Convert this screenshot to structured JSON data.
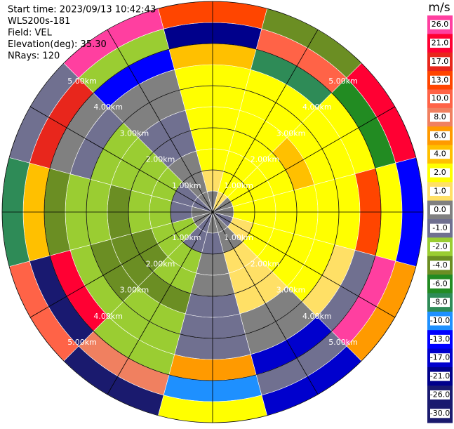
{
  "chart_data": {
    "type": "radar",
    "info": [
      "Start time: 2023/09/13 10:42:43",
      "WLS200s-181",
      "Field: VEL",
      "Elevation(deg): 35.30",
      "NRays: 120"
    ],
    "unit": "m/s",
    "rlim": [
      0,
      5
    ],
    "rticks": [
      {
        "value": 1,
        "label": "1.00km"
      },
      {
        "value": 2,
        "label": "2.00km"
      },
      {
        "value": 3,
        "label": "3.00km"
      },
      {
        "value": 4,
        "label": "4.00km"
      },
      {
        "value": 5,
        "label": "5.00km"
      }
    ],
    "values": [
      [
        0,
        1,
        0,
        0,
        -1,
        0,
        0,
        -1,
        0,
        0,
        -1,
        0
      ],
      [
        1,
        2,
        2,
        2,
        1,
        0,
        -1,
        -1,
        -2,
        -1,
        -1,
        0
      ],
      [
        2,
        2,
        3,
        2,
        2,
        1,
        0,
        -2,
        -2,
        -2,
        -2,
        0
      ],
      [
        2,
        3,
        3,
        3,
        2,
        1,
        0,
        -2,
        -3,
        -2,
        -2,
        -1
      ],
      [
        3,
        3,
        4,
        3,
        2,
        1,
        -1,
        -3,
        -3,
        -3,
        -2,
        -1
      ],
      [
        3,
        3,
        3,
        3,
        2,
        0,
        -1,
        -2,
        -3,
        -2,
        -2,
        0
      ],
      [
        2,
        2,
        3,
        2,
        1,
        0,
        -1,
        -2,
        -2,
        -2,
        -1,
        0
      ],
      [
        5,
        -8,
        2,
        13,
        -1,
        -17,
        6,
        -2,
        21,
        -4,
        0,
        -13
      ],
      [
        -21,
        10,
        -6,
        2,
        26,
        -1,
        -10,
        8,
        -26,
        4,
        17,
        -2
      ],
      [
        13,
        -4,
        21,
        -13,
        6,
        -17,
        2,
        -30,
        10,
        -8,
        -1,
        26
      ]
    ],
    "colorbar": {
      "ticks": [
        {
          "value": 26,
          "label": "26.0"
        },
        {
          "value": 21,
          "label": "21.0"
        },
        {
          "value": 17,
          "label": "17.0"
        },
        {
          "value": 13,
          "label": "13.0"
        },
        {
          "value": 10,
          "label": "10.0"
        },
        {
          "value": 8,
          "label": "8.0"
        },
        {
          "value": 6,
          "label": "6.0"
        },
        {
          "value": 4,
          "label": "4.0"
        },
        {
          "value": 2,
          "label": "2.0"
        },
        {
          "value": 1,
          "label": "1.0"
        },
        {
          "value": 0,
          "label": "0.0"
        },
        {
          "value": -1,
          "label": "-1.0"
        },
        {
          "value": -2,
          "label": "-2.0"
        },
        {
          "value": -4,
          "label": "-4.0"
        },
        {
          "value": -6,
          "label": "-6.0"
        },
        {
          "value": -8,
          "label": "-8.0"
        },
        {
          "value": -10,
          "label": "-10.0"
        },
        {
          "value": -13,
          "label": "-13.0"
        },
        {
          "value": -17,
          "label": "-17.0"
        },
        {
          "value": -21,
          "label": "-21.0"
        },
        {
          "value": -26,
          "label": "-26.0"
        },
        {
          "value": -30,
          "label": "-30.0"
        }
      ],
      "colors": [
        "#ff3fa0",
        "#ff0033",
        "#e8261c",
        "#ff4500",
        "#ff6347",
        "#f08060",
        "#ff9a00",
        "#ffc000",
        "#ffff00",
        "#ffe066",
        "#808080",
        "#707090",
        "#9acd32",
        "#6b8e23",
        "#228b22",
        "#2e8b57",
        "#1e90ff",
        "#0000ff",
        "#0000cd",
        "#00008b",
        "#191970",
        "#1a1a6e"
      ]
    }
  }
}
